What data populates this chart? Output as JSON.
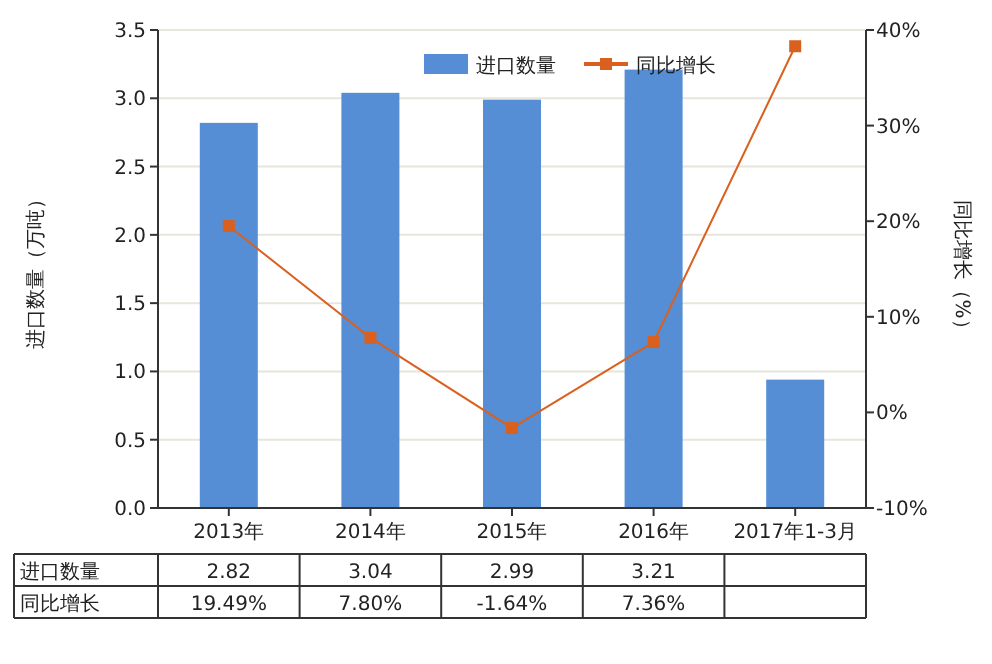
{
  "chart_data": {
    "type": "bar",
    "categories": [
      "2013年",
      "2014年",
      "2015年",
      "2016年",
      "2017年1-3月"
    ],
    "series": [
      {
        "name": "进口数量",
        "color": "#558ed5",
        "values": [
          2.82,
          3.04,
          2.99,
          3.21,
          0.94
        ],
        "value_labels": [
          "2.82",
          "3.04",
          "2.99",
          "3.21",
          null
        ]
      },
      {
        "name": "同比增长",
        "type": "line",
        "axis": "y2",
        "color": "#d9601e",
        "marker": "square",
        "values": [
          19.49,
          7.8,
          -1.64,
          7.36,
          38.3
        ],
        "value_labels": [
          "19.49%",
          "7.80%",
          "-1.64%",
          "7.36%",
          null
        ]
      }
    ],
    "ylabel": "进口数量（万吨）",
    "y2label": "同比增长（%）",
    "ylim": [
      0,
      3.5
    ],
    "yticks": [
      {
        "value": 0,
        "label": "0.0"
      },
      {
        "value": 0.5,
        "label": "0.5"
      },
      {
        "value": 1,
        "label": "1.0"
      },
      {
        "value": 1.5,
        "label": "1.5"
      },
      {
        "value": 2,
        "label": "2.0"
      },
      {
        "value": 2.5,
        "label": "2.5"
      },
      {
        "value": 3,
        "label": "3.0"
      },
      {
        "value": 3.5,
        "label": "3.5"
      }
    ],
    "y2lim": [
      -10,
      40
    ],
    "y2ticks": [
      {
        "value": -10,
        "label": "-10%"
      },
      {
        "value": 0,
        "label": "0%"
      },
      {
        "value": 10,
        "label": "10%"
      },
      {
        "value": 20,
        "label": "20%"
      },
      {
        "value": 30,
        "label": "30%"
      },
      {
        "value": 40,
        "label": "40%"
      }
    ],
    "grid": "y",
    "legend": "top right"
  }
}
